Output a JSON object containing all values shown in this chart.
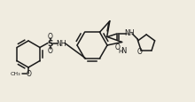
{
  "bg_color": "#f0ece0",
  "line_color": "#1a1a1a",
  "line_width": 1.1,
  "figsize": [
    2.2,
    1.16
  ],
  "dpi": 100,
  "xlim": [
    0,
    220
  ],
  "ylim": [
    0,
    116
  ]
}
